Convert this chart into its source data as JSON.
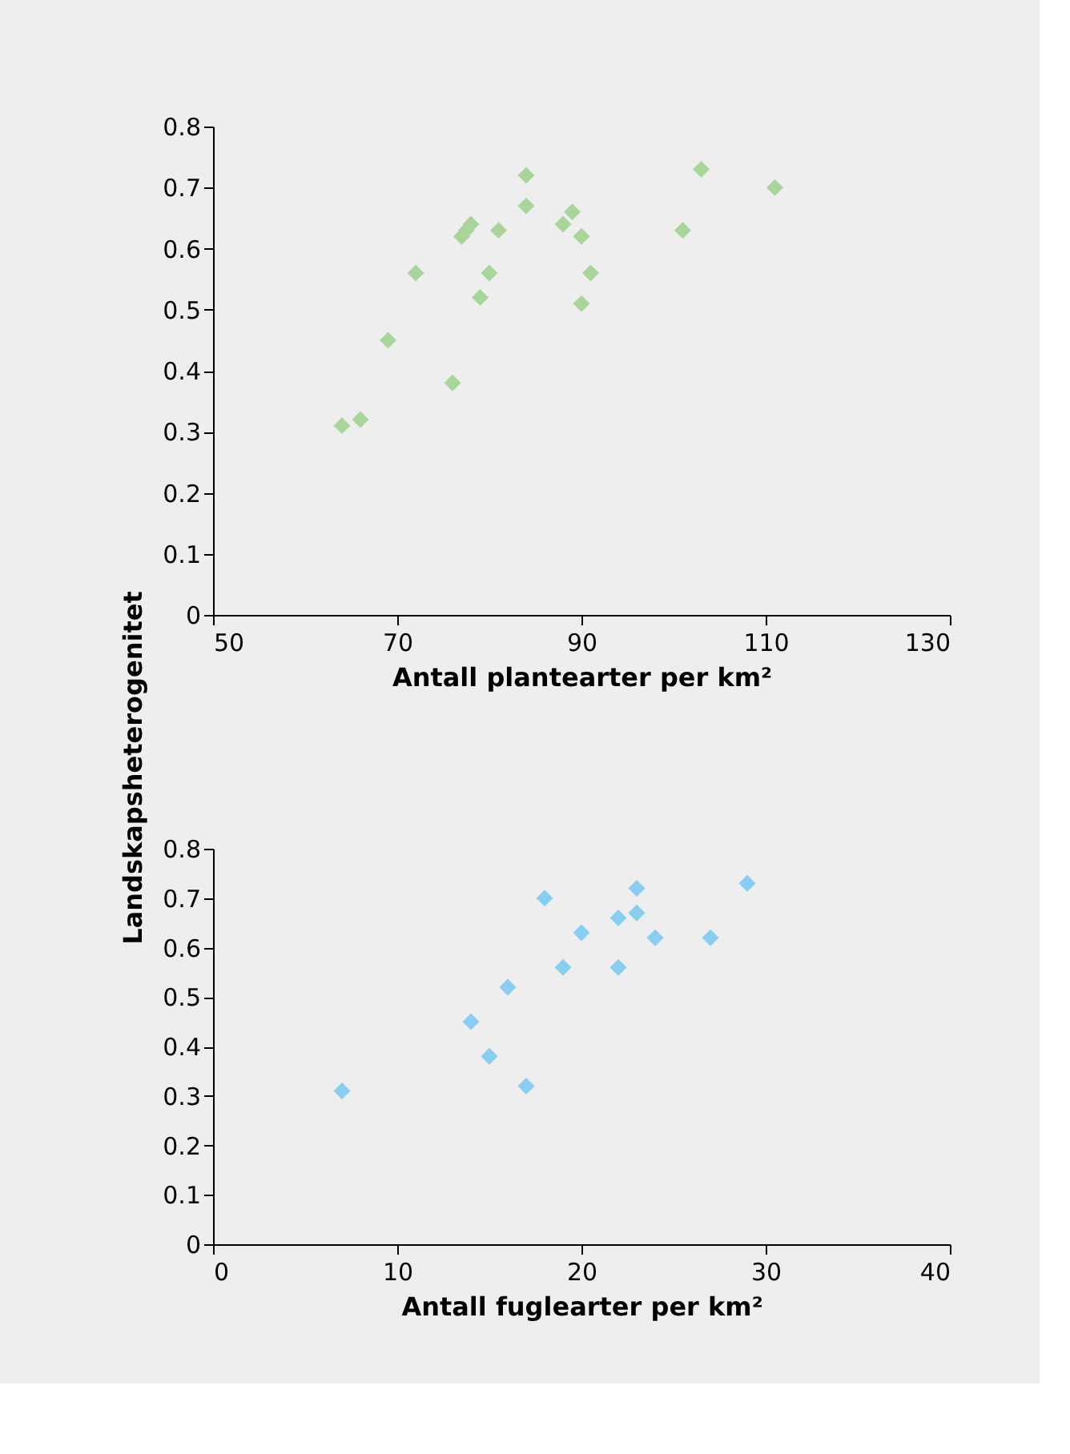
{
  "chart_data": [
    {
      "type": "scatter",
      "xlabel": "Antall plantearter per km²",
      "ylabel": "Landskapsheterogenitet",
      "marker": "diamond",
      "grid": false,
      "xlim": [
        50,
        130
      ],
      "xticks": [
        50,
        70,
        90,
        110,
        130
      ],
      "ylim": [
        0,
        0.8
      ],
      "yticks": [
        0,
        0.1,
        0.2,
        0.3,
        0.4,
        0.5,
        0.6,
        0.7,
        0.8
      ],
      "series": [
        {
          "color": "#a8d69a",
          "x": [
            64,
            66,
            69,
            72,
            76,
            77,
            77.5,
            78,
            79,
            80,
            81,
            84,
            84,
            88,
            89,
            90,
            90,
            91,
            101,
            103,
            111
          ],
          "values": [
            0.31,
            0.32,
            0.45,
            0.56,
            0.38,
            0.62,
            0.63,
            0.64,
            0.52,
            0.56,
            0.63,
            0.72,
            0.67,
            0.64,
            0.66,
            0.62,
            0.51,
            0.56,
            0.63,
            0.73,
            0.7
          ]
        }
      ]
    },
    {
      "type": "scatter",
      "xlabel": "Antall fuglearter per km²",
      "marker": "diamond",
      "grid": false,
      "xlim": [
        0,
        40
      ],
      "xticks": [
        0,
        10,
        20,
        30,
        40
      ],
      "ylim": [
        0,
        0.8
      ],
      "yticks": [
        0,
        0.1,
        0.2,
        0.3,
        0.4,
        0.5,
        0.6,
        0.7,
        0.8
      ],
      "series": [
        {
          "color": "#88cdf2",
          "x": [
            7,
            14,
            15,
            16,
            17,
            18,
            19,
            20,
            22,
            22,
            23,
            23,
            24,
            27,
            29
          ],
          "values": [
            0.31,
            0.45,
            0.38,
            0.52,
            0.32,
            0.7,
            0.56,
            0.63,
            0.66,
            0.56,
            0.72,
            0.67,
            0.62,
            0.62,
            0.73
          ]
        }
      ]
    }
  ]
}
